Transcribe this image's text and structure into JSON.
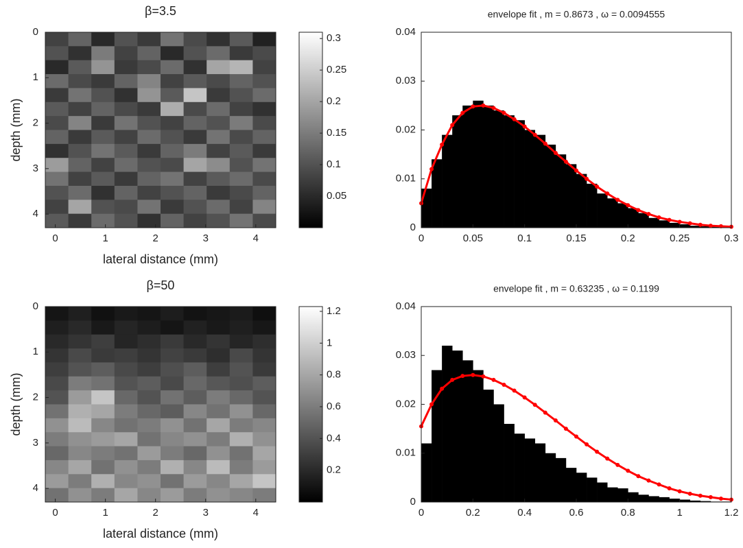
{
  "chart_data": [
    {
      "type": "heatmap",
      "title": "β=3.5",
      "xlabel": "lateral distance (mm)",
      "ylabel": "depth (mm)",
      "xlim": [
        -0.2,
        4.4
      ],
      "ylim": [
        0,
        4.3
      ],
      "xticks": [
        0,
        1,
        2,
        3,
        4
      ],
      "yticks": [
        0,
        1,
        2,
        3,
        4
      ],
      "colormap": "gray",
      "clim": [
        0,
        0.31
      ],
      "cticks": [
        0.05,
        0.1,
        0.15,
        0.2,
        0.25,
        0.3
      ],
      "values": [
        [
          0.08,
          0.12,
          0.05,
          0.1,
          0.07,
          0.14,
          0.09,
          0.06,
          0.11,
          0.04
        ],
        [
          0.1,
          0.06,
          0.15,
          0.08,
          0.12,
          0.05,
          0.1,
          0.13,
          0.07,
          0.09
        ],
        [
          0.05,
          0.11,
          0.18,
          0.07,
          0.09,
          0.13,
          0.06,
          0.2,
          0.22,
          0.08
        ],
        [
          0.13,
          0.09,
          0.07,
          0.12,
          0.16,
          0.08,
          0.11,
          0.09,
          0.12,
          0.1
        ],
        [
          0.07,
          0.14,
          0.1,
          0.06,
          0.18,
          0.11,
          0.24,
          0.07,
          0.1,
          0.13
        ],
        [
          0.11,
          0.08,
          0.12,
          0.09,
          0.07,
          0.21,
          0.09,
          0.13,
          0.08,
          0.06
        ],
        [
          0.09,
          0.16,
          0.07,
          0.14,
          0.1,
          0.08,
          0.12,
          0.1,
          0.15,
          0.09
        ],
        [
          0.12,
          0.07,
          0.11,
          0.08,
          0.13,
          0.1,
          0.07,
          0.14,
          0.09,
          0.12
        ],
        [
          0.06,
          0.1,
          0.14,
          0.11,
          0.07,
          0.12,
          0.15,
          0.08,
          0.11,
          0.07
        ],
        [
          0.19,
          0.12,
          0.08,
          0.13,
          0.1,
          0.09,
          0.2,
          0.17,
          0.1,
          0.14
        ],
        [
          0.14,
          0.08,
          0.11,
          0.07,
          0.12,
          0.14,
          0.08,
          0.11,
          0.13,
          0.09
        ],
        [
          0.1,
          0.13,
          0.06,
          0.12,
          0.08,
          0.1,
          0.12,
          0.07,
          0.09,
          0.12
        ],
        [
          0.08,
          0.2,
          0.1,
          0.09,
          0.14,
          0.07,
          0.1,
          0.13,
          0.08,
          0.16
        ],
        [
          0.11,
          0.07,
          0.13,
          0.1,
          0.06,
          0.12,
          0.08,
          0.1,
          0.14,
          0.09
        ]
      ]
    },
    {
      "type": "histogram",
      "title": "envelope fit , m = 0.8673 , ω = 0.0094555",
      "xlim": [
        0,
        0.3
      ],
      "ylim": [
        0,
        0.04
      ],
      "xticks": [
        0,
        0.05,
        0.1,
        0.15,
        0.2,
        0.25,
        0.3
      ],
      "yticks": [
        0,
        0.01,
        0.02,
        0.03,
        0.04
      ],
      "color": "#000000",
      "bins": [
        0,
        0.01,
        0.02,
        0.03,
        0.04,
        0.05,
        0.06,
        0.07,
        0.08,
        0.09,
        0.1,
        0.11,
        0.12,
        0.13,
        0.14,
        0.15,
        0.16,
        0.17,
        0.18,
        0.19,
        0.2,
        0.21,
        0.22,
        0.23,
        0.24,
        0.25,
        0.26,
        0.27,
        0.28,
        0.29,
        0.3
      ],
      "values": [
        0.008,
        0.014,
        0.019,
        0.023,
        0.025,
        0.026,
        0.025,
        0.024,
        0.023,
        0.022,
        0.02,
        0.019,
        0.017,
        0.015,
        0.013,
        0.011,
        0.009,
        0.007,
        0.006,
        0.005,
        0.004,
        0.003,
        0.002,
        0.0015,
        0.001,
        0.0007,
        0.0004,
        0.0003,
        0.0002,
        0.0001
      ],
      "line": {
        "color": "#ff0000",
        "x": [
          0,
          0.01,
          0.02,
          0.03,
          0.04,
          0.05,
          0.06,
          0.07,
          0.08,
          0.09,
          0.1,
          0.11,
          0.12,
          0.13,
          0.14,
          0.15,
          0.16,
          0.17,
          0.18,
          0.19,
          0.2,
          0.21,
          0.22,
          0.23,
          0.24,
          0.25,
          0.26,
          0.27,
          0.28,
          0.29,
          0.3
        ],
        "values": [
          0.005,
          0.012,
          0.017,
          0.021,
          0.0235,
          0.0248,
          0.025,
          0.0245,
          0.0235,
          0.0222,
          0.0207,
          0.019,
          0.0172,
          0.0153,
          0.0135,
          0.0117,
          0.01,
          0.0084,
          0.007,
          0.0057,
          0.0046,
          0.0036,
          0.0028,
          0.0021,
          0.0016,
          0.0012,
          0.0009,
          0.0006,
          0.0004,
          0.0003,
          0.0002
        ]
      }
    },
    {
      "type": "heatmap",
      "title": "β=50",
      "xlabel": "lateral distance (mm)",
      "ylabel": "depth (mm)",
      "xlim": [
        -0.2,
        4.4
      ],
      "ylim": [
        0,
        4.3
      ],
      "xticks": [
        0,
        1,
        2,
        3,
        4
      ],
      "yticks": [
        0,
        1,
        2,
        3,
        4
      ],
      "colormap": "gray",
      "clim": [
        0,
        1.23
      ],
      "cticks": [
        0.2,
        0.4,
        0.6,
        0.8,
        1,
        1.2
      ],
      "values": [
        [
          0.1,
          0.15,
          0.08,
          0.12,
          0.1,
          0.14,
          0.09,
          0.11,
          0.13,
          0.07
        ],
        [
          0.15,
          0.2,
          0.12,
          0.18,
          0.14,
          0.1,
          0.16,
          0.12,
          0.15,
          0.11
        ],
        [
          0.2,
          0.25,
          0.3,
          0.18,
          0.22,
          0.28,
          0.2,
          0.25,
          0.18,
          0.22
        ],
        [
          0.25,
          0.35,
          0.28,
          0.3,
          0.25,
          0.32,
          0.28,
          0.22,
          0.35,
          0.25
        ],
        [
          0.3,
          0.4,
          0.45,
          0.35,
          0.3,
          0.38,
          0.45,
          0.3,
          0.4,
          0.28
        ],
        [
          0.35,
          0.6,
          0.55,
          0.4,
          0.45,
          0.35,
          0.5,
          0.42,
          0.38,
          0.45
        ],
        [
          0.4,
          0.75,
          0.95,
          0.5,
          0.4,
          0.55,
          0.45,
          0.6,
          0.5,
          0.4
        ],
        [
          0.55,
          0.85,
          0.8,
          0.6,
          0.5,
          0.45,
          0.65,
          0.55,
          0.7,
          0.5
        ],
        [
          0.7,
          0.9,
          0.65,
          0.55,
          0.6,
          0.7,
          0.55,
          0.8,
          0.6,
          0.65
        ],
        [
          0.6,
          0.7,
          0.75,
          0.8,
          0.55,
          0.65,
          0.7,
          0.6,
          0.85,
          0.7
        ],
        [
          0.5,
          0.65,
          0.6,
          0.55,
          0.75,
          0.6,
          0.5,
          0.7,
          0.55,
          0.8
        ],
        [
          0.65,
          0.8,
          0.55,
          0.7,
          0.6,
          0.85,
          0.65,
          0.9,
          0.6,
          0.75
        ],
        [
          0.75,
          0.6,
          0.85,
          0.65,
          0.7,
          0.55,
          0.75,
          0.65,
          0.8,
          0.95
        ],
        [
          0.55,
          0.7,
          0.6,
          0.8,
          0.65,
          0.75,
          0.6,
          0.7,
          0.65,
          0.6
        ]
      ]
    },
    {
      "type": "histogram",
      "title": "envelope fit , m = 0.63235 , ω = 0.1199",
      "xlim": [
        0,
        1.2
      ],
      "ylim": [
        0,
        0.04
      ],
      "xticks": [
        0,
        0.2,
        0.4,
        0.6,
        0.8,
        1,
        1.2
      ],
      "yticks": [
        0,
        0.01,
        0.02,
        0.03,
        0.04
      ],
      "color": "#000000",
      "bins": [
        0,
        0.04,
        0.08,
        0.12,
        0.16,
        0.2,
        0.24,
        0.28,
        0.32,
        0.36,
        0.4,
        0.44,
        0.48,
        0.52,
        0.56,
        0.6,
        0.64,
        0.68,
        0.72,
        0.76,
        0.8,
        0.84,
        0.88,
        0.92,
        0.96,
        1,
        1.04,
        1.08,
        1.12,
        1.16,
        1.2
      ],
      "values": [
        0.012,
        0.027,
        0.032,
        0.031,
        0.029,
        0.027,
        0.023,
        0.02,
        0.016,
        0.014,
        0.013,
        0.012,
        0.01,
        0.009,
        0.007,
        0.006,
        0.005,
        0.004,
        0.003,
        0.0028,
        0.002,
        0.0015,
        0.0012,
        0.001,
        0.0007,
        0.0005,
        0.0003,
        0.0002,
        0.0001,
        0.0001
      ],
      "line": {
        "color": "#ff0000",
        "x": [
          0,
          0.04,
          0.08,
          0.12,
          0.16,
          0.2,
          0.24,
          0.28,
          0.32,
          0.36,
          0.4,
          0.44,
          0.48,
          0.52,
          0.56,
          0.6,
          0.64,
          0.68,
          0.72,
          0.76,
          0.8,
          0.84,
          0.88,
          0.92,
          0.96,
          1,
          1.04,
          1.08,
          1.12,
          1.16,
          1.2
        ],
        "values": [
          0.0155,
          0.02,
          0.0232,
          0.025,
          0.0258,
          0.026,
          0.0257,
          0.025,
          0.024,
          0.0228,
          0.0214,
          0.0199,
          0.0183,
          0.0167,
          0.015,
          0.0134,
          0.0118,
          0.0103,
          0.0089,
          0.0076,
          0.0064,
          0.0053,
          0.0044,
          0.0036,
          0.0028,
          0.0022,
          0.0017,
          0.0013,
          0.001,
          0.0007,
          0.0005
        ]
      }
    }
  ]
}
